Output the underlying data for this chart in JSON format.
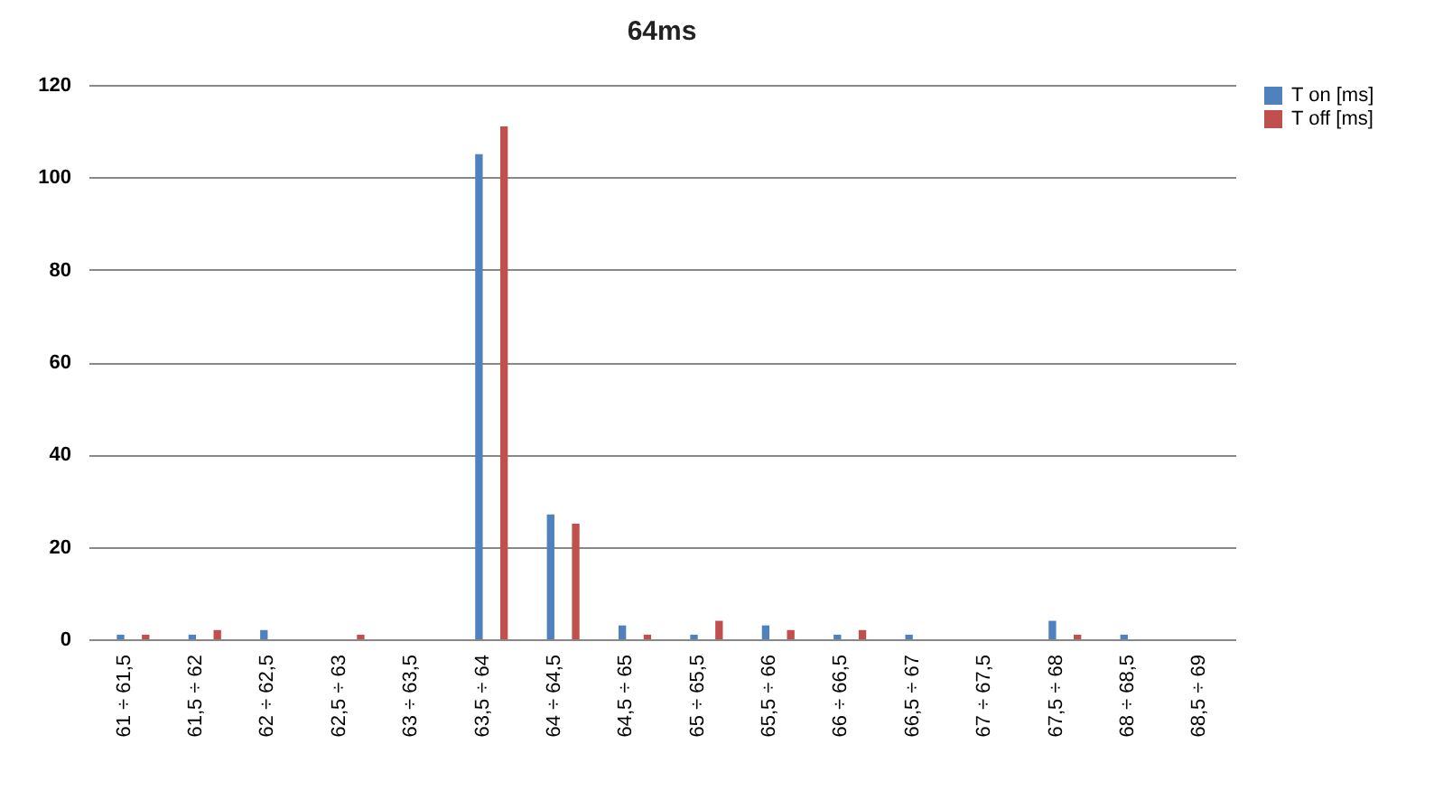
{
  "chart_data": {
    "type": "bar",
    "title": "64ms",
    "categories": [
      "61 ÷ 61,5",
      "61,5 ÷ 62",
      "62 ÷ 62,5",
      "62,5 ÷ 63",
      "63 ÷ 63,5",
      "63,5 ÷ 64",
      "64 ÷ 64,5",
      "64,5 ÷ 65",
      "65 ÷ 65,5",
      "65,5 ÷ 66",
      "66 ÷ 66,5",
      "66,5 ÷ 67",
      "67 ÷ 67,5",
      "67,5 ÷ 68",
      "68 ÷ 68,5",
      "68,5 ÷ 69"
    ],
    "series": [
      {
        "name": "T on [ms]",
        "color": "#4f81bd",
        "values": [
          1,
          1,
          2,
          0,
          0,
          105,
          27,
          3,
          1,
          3,
          1,
          1,
          0,
          4,
          1,
          0
        ]
      },
      {
        "name": "T off [ms]",
        "color": "#c0504d",
        "values": [
          1,
          2,
          0,
          1,
          0,
          111,
          25,
          1,
          4,
          2,
          2,
          0,
          0,
          1,
          0,
          0
        ]
      }
    ],
    "ylim": [
      0,
      120
    ],
    "yticks": [
      0,
      20,
      40,
      60,
      80,
      100,
      120
    ],
    "grid": "y",
    "legend": "right"
  }
}
